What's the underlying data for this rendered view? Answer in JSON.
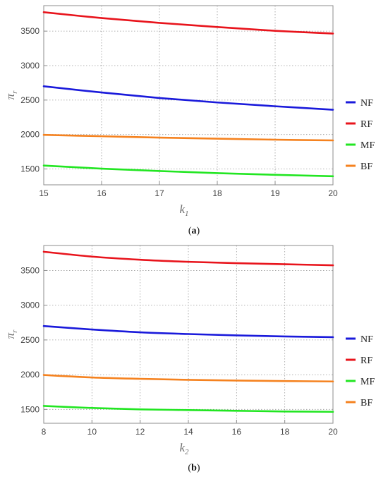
{
  "chart_data": [
    {
      "type": "line",
      "caption_letter": "a",
      "xlabel_base": "k",
      "xlabel_sub": "1",
      "ylabel_base": "π",
      "ylabel_sub": "r",
      "xlim": [
        15,
        20
      ],
      "ylim": [
        1270,
        3870
      ],
      "xticks": [
        15,
        16,
        17,
        18,
        19,
        20
      ],
      "yticks": [
        1500,
        2000,
        2500,
        3000,
        3500
      ],
      "grid": true,
      "legend_position": "right",
      "series": [
        {
          "name": "NF",
          "color": "#1a1adb",
          "x": [
            15,
            16,
            17,
            18,
            19,
            20
          ],
          "values": [
            2700,
            2610,
            2530,
            2465,
            2410,
            2360
          ]
        },
        {
          "name": "RF",
          "color": "#e8141c",
          "x": [
            15,
            16,
            17,
            18,
            19,
            20
          ],
          "values": [
            3775,
            3690,
            3620,
            3560,
            3505,
            3465
          ]
        },
        {
          "name": "MF",
          "color": "#22e622",
          "x": [
            15,
            16,
            17,
            18,
            19,
            20
          ],
          "values": [
            1550,
            1505,
            1470,
            1440,
            1415,
            1395
          ]
        },
        {
          "name": "BF",
          "color": "#f5821f",
          "x": [
            15,
            16,
            17,
            18,
            19,
            20
          ],
          "values": [
            1995,
            1975,
            1955,
            1940,
            1925,
            1915
          ]
        }
      ]
    },
    {
      "type": "line",
      "caption_letter": "b",
      "xlabel_base": "k",
      "xlabel_sub": "2",
      "ylabel_base": "π",
      "ylabel_sub": "r",
      "xlim": [
        8,
        20
      ],
      "ylim": [
        1300,
        3860
      ],
      "xticks": [
        8,
        10,
        12,
        14,
        16,
        18,
        20
      ],
      "yticks": [
        1500,
        2000,
        2500,
        3000,
        3500
      ],
      "grid": true,
      "legend_position": "right",
      "series": [
        {
          "name": "NF",
          "color": "#1a1adb",
          "x": [
            8,
            10,
            12,
            14,
            16,
            18,
            20
          ],
          "values": [
            2700,
            2650,
            2610,
            2585,
            2565,
            2550,
            2540
          ]
        },
        {
          "name": "RF",
          "color": "#e8141c",
          "x": [
            8,
            10,
            12,
            14,
            16,
            18,
            20
          ],
          "values": [
            3770,
            3700,
            3655,
            3625,
            3605,
            3590,
            3575
          ]
        },
        {
          "name": "MF",
          "color": "#22e622",
          "x": [
            8,
            10,
            12,
            14,
            16,
            18,
            20
          ],
          "values": [
            1550,
            1520,
            1500,
            1490,
            1480,
            1470,
            1465
          ]
        },
        {
          "name": "BF",
          "color": "#f5821f",
          "x": [
            8,
            10,
            12,
            14,
            16,
            18,
            20
          ],
          "values": [
            1995,
            1960,
            1940,
            1925,
            1915,
            1908,
            1902
          ]
        }
      ]
    }
  ]
}
